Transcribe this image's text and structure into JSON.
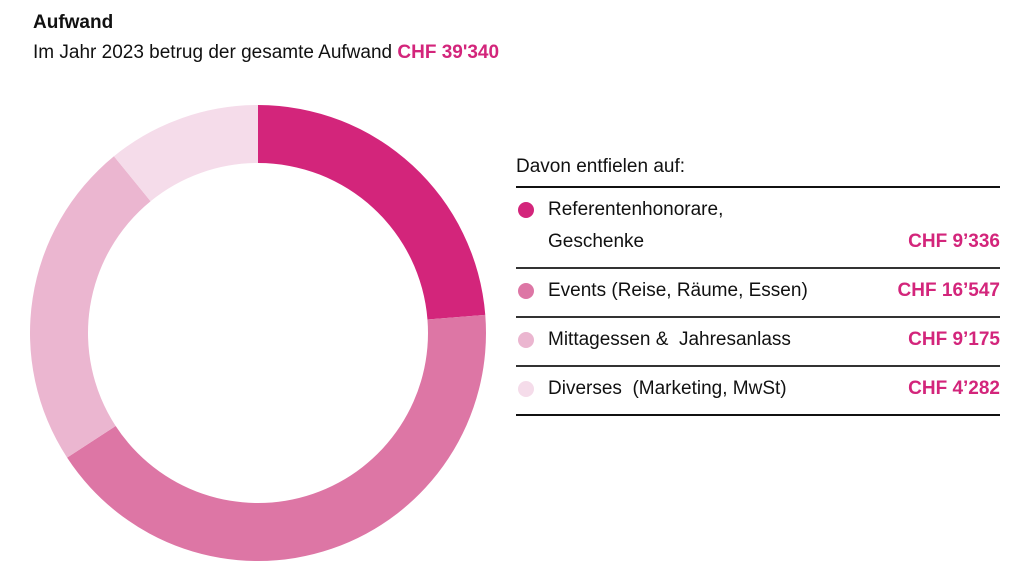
{
  "title": "Aufwand",
  "subtitle_prefix": "Im Jahr 2023 betrug der gesamte Aufwand",
  "subtitle_total": "CHF 39'340",
  "chart_data": {
    "type": "pie",
    "variant": "donut",
    "title": "Aufwand",
    "total": 39340,
    "legend_title": "Davon entfielen auf:",
    "legend_placement": "right",
    "slices": [
      {
        "label": "Referentenhonorare, Geschenke",
        "label_line1": "Referentenhonorare,",
        "label_line2": "Geschenke",
        "value": 9336,
        "value_label": "CHF 9’336",
        "color": "#D3257B"
      },
      {
        "label": "Events (Reise, Räume, Essen)",
        "value": 16547,
        "value_label": "CHF 16’547",
        "color": "#DD76A5"
      },
      {
        "label": "Mittagessen &  Jahresanlass",
        "value": 9175,
        "value_label": "CHF 9’175",
        "color": "#EBB6D0"
      },
      {
        "label": "Diverses  (Marketing, MwSt)",
        "value": 4282,
        "value_label": "CHF 4’282",
        "color": "#F5DCEA"
      }
    ]
  }
}
